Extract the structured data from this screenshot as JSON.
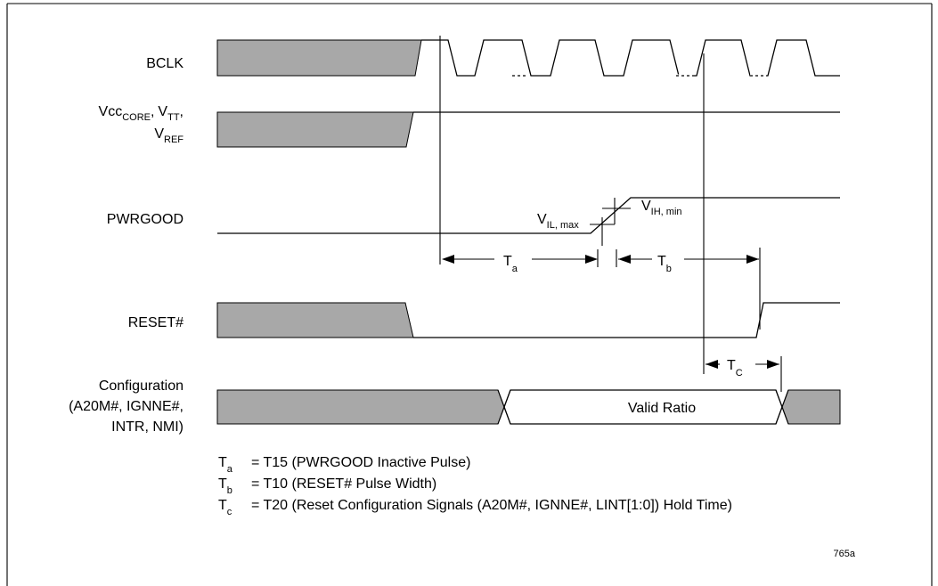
{
  "signals": {
    "bclk": "BCLK",
    "vcc": {
      "vcc_base": "Vcc",
      "vcc_sub": "CORE",
      "vtt_base": "V",
      "vtt_sub": "TT",
      "vref_base": "V",
      "vref_sub": "REF",
      "comma": ","
    },
    "pwrgood": "PWRGOOD",
    "reset": "RESET#",
    "config_line1": "Configuration",
    "config_line2": "(A20M#, IGNNE#,",
    "config_line3": "INTR, NMI)"
  },
  "annotations": {
    "vil_base": "V",
    "vil_sub": "IL, max",
    "vih_base": "V",
    "vih_sub": "IH, min",
    "ta_base": "T",
    "ta_sub": "a",
    "tb_base": "T",
    "tb_sub": "b",
    "tc_base": "T",
    "tc_sub": "C",
    "valid_ratio": "Valid Ratio"
  },
  "legend": [
    {
      "base": "T",
      "sub": "a",
      "text": "= T15 (PWRGOOD Inactive Pulse)"
    },
    {
      "base": "T",
      "sub": "b",
      "text": "= T10 (RESET# Pulse Width)"
    },
    {
      "base": "T",
      "sub": "c",
      "text": "= T20 (Reset Configuration Signals (A20M#, IGNNE#, LINT[1:0]) Hold Time)"
    }
  ],
  "figure_id": "765a"
}
